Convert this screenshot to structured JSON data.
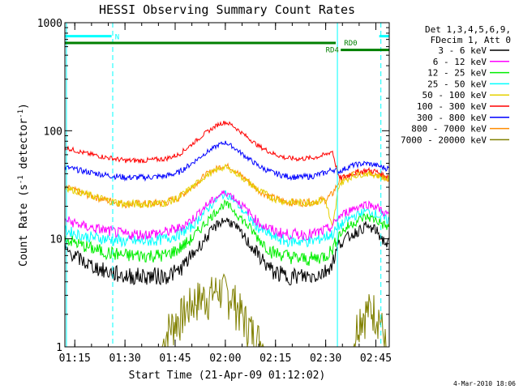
{
  "chart_data": {
    "type": "line",
    "title": "HESSI Observing Summary Count Rates",
    "xlabel": "Start Time (21-Apr-09 01:12:02)",
    "ylabel_main": "Count Rate (s",
    "ylabel_sup1": "-1",
    "ylabel_mid": " detector",
    "ylabel_sup2": "-1",
    "ylabel_end": ")",
    "footer_date": "4-Mar-2010 18:06",
    "x_scale": "time",
    "y_scale": "log",
    "xlim": [
      "01:12:02",
      "02:49:00"
    ],
    "ylim": [
      1,
      1000
    ],
    "x_ticks": [
      "01:15",
      "01:30",
      "01:45",
      "02:00",
      "02:15",
      "02:30",
      "02:45"
    ],
    "y_ticks": [
      {
        "value": 1,
        "label": "1"
      },
      {
        "value": 10,
        "label": "10"
      },
      {
        "value": 100,
        "label": "100"
      },
      {
        "value": 1000,
        "label": "1000"
      }
    ],
    "legend_header": [
      "Det 1,3,4,5,6,9,",
      "FDecim 1, Att 0"
    ],
    "legend_placement": "right",
    "series": [
      {
        "name": "3 - 6 keV",
        "color": "#000000",
        "x": [
          "01:12:02",
          "01:18:00",
          "01:24:00",
          "01:30:00",
          "01:36:00",
          "01:42:00",
          "01:46:00",
          "01:50:00",
          "01:54:00",
          "01:58:00",
          "02:00:00",
          "02:02:00",
          "02:06:00",
          "02:10:00",
          "02:14:00",
          "02:18:00",
          "02:22:00",
          "02:26:00",
          "02:30:00",
          "02:32:00",
          "02:34:00",
          "02:38:00",
          "02:42:00",
          "02:45:00",
          "02:48:00"
        ],
        "y": [
          8,
          6,
          5,
          4.5,
          4.5,
          4.5,
          5,
          7,
          10,
          14,
          15,
          14,
          10,
          7,
          5,
          4.5,
          4.5,
          4.5,
          5,
          6,
          9,
          11,
          13,
          12,
          9
        ]
      },
      {
        "name": "6 - 12 keV",
        "color": "#ff00ff",
        "x": [
          "01:12:02",
          "01:18:00",
          "01:24:00",
          "01:30:00",
          "01:36:00",
          "01:42:00",
          "01:46:00",
          "01:50:00",
          "01:54:00",
          "01:58:00",
          "02:00:00",
          "02:02:00",
          "02:06:00",
          "02:10:00",
          "02:14:00",
          "02:18:00",
          "02:22:00",
          "02:26:00",
          "02:30:00",
          "02:32:00",
          "02:34:00",
          "02:38:00",
          "02:42:00",
          "02:45:00",
          "02:48:00"
        ],
        "y": [
          15,
          13,
          12,
          11,
          11,
          11.5,
          12.5,
          15,
          20,
          25,
          27,
          25,
          19,
          14,
          12,
          11,
          11,
          11,
          12,
          13,
          16,
          19,
          21,
          20,
          17
        ]
      },
      {
        "name": "12 - 25 keV",
        "color": "#00ee00",
        "x": [
          "01:12:02",
          "01:18:00",
          "01:24:00",
          "01:30:00",
          "01:36:00",
          "01:42:00",
          "01:46:00",
          "01:50:00",
          "01:54:00",
          "01:58:00",
          "02:00:00",
          "02:02:00",
          "02:06:00",
          "02:10:00",
          "02:14:00",
          "02:18:00",
          "02:22:00",
          "02:26:00",
          "02:30:00",
          "02:32:00",
          "02:34:00",
          "02:38:00",
          "02:42:00",
          "02:45:00",
          "02:48:00"
        ],
        "y": [
          10,
          8.5,
          7.5,
          7,
          7,
          7,
          8,
          10,
          14,
          19,
          21,
          19,
          14,
          10,
          7.5,
          7,
          6.5,
          6.5,
          7,
          8,
          11,
          14,
          16,
          15,
          13
        ]
      },
      {
        "name": "25 - 50 keV",
        "color": "#00ffff",
        "x": [
          "01:12:02",
          "01:18:00",
          "01:24:00",
          "01:30:00",
          "01:36:00",
          "01:42:00",
          "01:46:00",
          "01:50:00",
          "01:54:00",
          "01:58:00",
          "02:00:00",
          "02:02:00",
          "02:06:00",
          "02:10:00",
          "02:14:00",
          "02:18:00",
          "02:22:00",
          "02:26:00",
          "02:30:00",
          "02:32:00",
          "02:34:00",
          "02:38:00",
          "02:42:00",
          "02:45:00",
          "02:48:00"
        ],
        "y": [
          12,
          10.5,
          10,
          9.5,
          9.5,
          10,
          11,
          13,
          18,
          24,
          26,
          24,
          17,
          12.5,
          10.5,
          9.5,
          9.5,
          9.5,
          10.5,
          11,
          13,
          16,
          18,
          17,
          15
        ]
      },
      {
        "name": "50 - 100 keV",
        "color": "#e6d000",
        "x": [
          "01:12:02",
          "01:18:00",
          "01:24:00",
          "01:30:00",
          "01:36:00",
          "01:42:00",
          "01:46:00",
          "01:50:00",
          "01:54:00",
          "01:58:00",
          "02:00:00",
          "02:02:00",
          "02:06:00",
          "02:10:00",
          "02:14:00",
          "02:18:00",
          "02:22:00",
          "02:26:00",
          "02:30:00",
          "02:32:00",
          "02:34:00",
          "02:38:00",
          "02:42:00",
          "02:45:00",
          "02:48:00"
        ],
        "y": [
          30,
          26,
          23,
          21,
          21,
          21.5,
          24,
          30,
          38,
          44,
          46,
          43,
          35,
          28,
          24,
          22,
          21.5,
          22,
          23,
          12,
          32,
          38,
          40,
          39,
          36
        ]
      },
      {
        "name": "100 - 300 keV",
        "color": "#ff0000",
        "x": [
          "01:12:02",
          "01:18:00",
          "01:24:00",
          "01:30:00",
          "01:36:00",
          "01:42:00",
          "01:46:00",
          "01:50:00",
          "01:54:00",
          "01:58:00",
          "02:00:00",
          "02:02:00",
          "02:06:00",
          "02:10:00",
          "02:14:00",
          "02:18:00",
          "02:22:00",
          "02:26:00",
          "02:30:00",
          "02:32:00",
          "02:34:00",
          "02:38:00",
          "02:42:00",
          "02:45:00",
          "02:48:00"
        ],
        "y": [
          70,
          62,
          57,
          53,
          53,
          55,
          60,
          75,
          95,
          115,
          120,
          113,
          90,
          72,
          62,
          56,
          55,
          56,
          60,
          65,
          36,
          40,
          43,
          42,
          38
        ]
      },
      {
        "name": "300 - 800 keV",
        "color": "#0000ff",
        "x": [
          "01:12:02",
          "01:18:00",
          "01:24:00",
          "01:30:00",
          "01:36:00",
          "01:42:00",
          "01:46:00",
          "01:50:00",
          "01:54:00",
          "01:58:00",
          "02:00:00",
          "02:02:00",
          "02:06:00",
          "02:10:00",
          "02:14:00",
          "02:18:00",
          "02:22:00",
          "02:26:00",
          "02:30:00",
          "02:32:00",
          "02:34:00",
          "02:38:00",
          "02:42:00",
          "02:45:00",
          "02:48:00"
        ],
        "y": [
          46,
          42,
          39,
          37,
          37,
          38,
          41,
          50,
          62,
          74,
          78,
          72,
          58,
          47,
          41,
          38,
          37,
          38,
          41,
          44,
          42,
          48,
          50,
          48,
          45
        ]
      },
      {
        "name": "800 - 7000 keV",
        "color": "#ff8c00",
        "x": [
          "01:12:02",
          "01:18:00",
          "01:24:00",
          "01:30:00",
          "01:36:00",
          "01:42:00",
          "01:46:00",
          "01:50:00",
          "01:54:00",
          "01:58:00",
          "02:00:00",
          "02:02:00",
          "02:06:00",
          "02:10:00",
          "02:14:00",
          "02:18:00",
          "02:22:00",
          "02:26:00",
          "02:30:00",
          "02:32:00",
          "02:34:00",
          "02:38:00",
          "02:42:00",
          "02:45:00",
          "02:48:00"
        ],
        "y": [
          30,
          26,
          23,
          21,
          21,
          21.5,
          24,
          30,
          39,
          46,
          48,
          45,
          36,
          28,
          24,
          22,
          21.5,
          22,
          23,
          26,
          34,
          40,
          42,
          40,
          36
        ]
      },
      {
        "name": "7000 - 20000 keV",
        "color": "#808000",
        "x": [
          "01:12:02",
          "01:37:00",
          "01:41:00",
          "01:43:00",
          "01:47:00",
          "01:51:00",
          "01:55:00",
          "01:58:00",
          "02:02:00",
          "02:05:00",
          "02:08:00",
          "02:12:00",
          "02:16:00",
          "02:30:00",
          "02:38:00",
          "02:40:00",
          "02:44:00",
          "02:46:00",
          "02:48:00"
        ],
        "y": [
          1,
          1,
          1,
          1.5,
          2,
          2.8,
          3,
          3.5,
          3,
          2,
          1.4,
          1,
          1,
          1,
          1,
          2,
          2.3,
          2,
          1
        ]
      }
    ],
    "annotations": [
      {
        "label": "N",
        "color": "#00ffff",
        "value": 750,
        "segments": [
          [
            "01:12:02",
            "01:26:00"
          ],
          [
            "02:46:00",
            "02:49:00"
          ]
        ]
      },
      {
        "label": "RD0",
        "color": "#00ffff",
        "value": 750,
        "segments": []
      },
      {
        "label": "RD0",
        "color": "#008000",
        "value": 650,
        "segments": [
          [
            "01:12:02",
            "02:33:00"
          ]
        ]
      },
      {
        "label": "RD4",
        "color": "#008000",
        "value": 560,
        "segments": [
          [
            "02:34:30",
            "02:49:00"
          ]
        ]
      }
    ],
    "vertical_markers": [
      {
        "x": "01:12:30",
        "color": "#00ffff",
        "style": "solid"
      },
      {
        "x": "01:26:20",
        "color": "#00ffff",
        "style": "dashed"
      },
      {
        "x": "02:33:30",
        "color": "#00ffff",
        "style": "solid"
      },
      {
        "x": "02:46:30",
        "color": "#00ffff",
        "style": "dashed"
      }
    ]
  }
}
